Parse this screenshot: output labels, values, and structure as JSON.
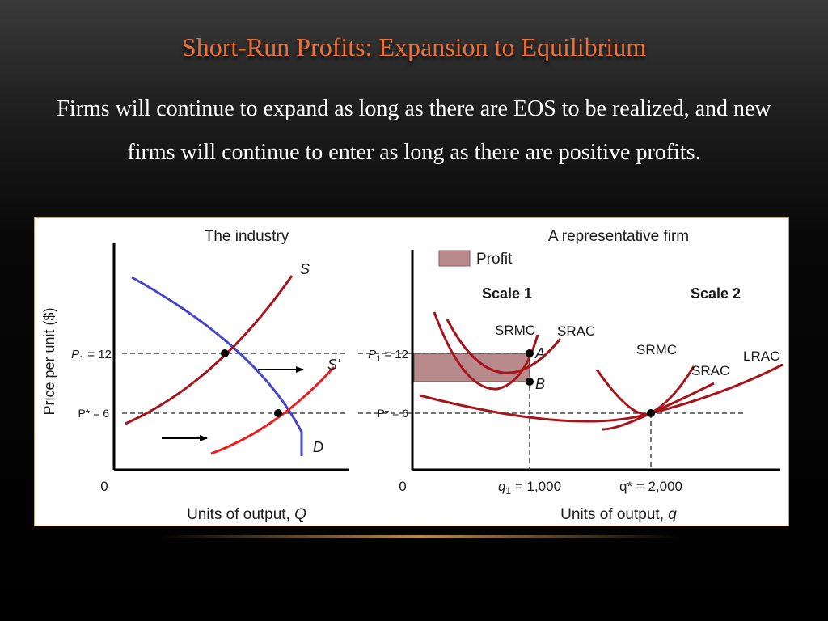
{
  "slide": {
    "title": "Short-Run Profits: Expansion to Equilibrium",
    "body": "Firms will continue to expand as long as there are EOS to be realized, and new firms will continue to enter as long as there are positive profits."
  },
  "colors": {
    "title": "#e9703b",
    "supply_curve": "#a8141c",
    "new_supply_curve": "#ee1c1c",
    "demand_curve": "#4646c8",
    "firm_curves": "#a8141c",
    "profit_fill": "#b98a8c"
  },
  "left_panel": {
    "title": "The industry",
    "y_axis_label": "Price per unit ($)",
    "x_axis_label": "Units of output,",
    "x_axis_var": "Q",
    "origin_label": "0",
    "p1_label": "P",
    "p1_sub": "1",
    "p1_value": " = 12",
    "pstar_label": "P* = 6",
    "supply_label": "S",
    "new_supply_label": "S'",
    "demand_label": "D",
    "arrow_icon": "right-arrow-icon"
  },
  "right_panel": {
    "title": "A representative firm",
    "legend_label": "Profit",
    "scale1_label": "Scale 1",
    "scale2_label": "Scale 2",
    "srmc1_label": "SRMC",
    "srac1_label": "SRAC",
    "srmc2_label": "SRMC",
    "srac2_label": "SRAC",
    "lrac_label": "LRAC",
    "p1_label": "P",
    "p1_sub": "1",
    "p1_value": " = 12",
    "pstar_label": "P* = 6",
    "point_a": "A",
    "point_b": "B",
    "origin_label": "0",
    "q1_label": "q",
    "q1_sub": "1",
    "q1_value": " = 1,000",
    "qstar_label": "q* = 2,000",
    "x_axis_label": "Units of output,",
    "x_axis_var": "q"
  }
}
